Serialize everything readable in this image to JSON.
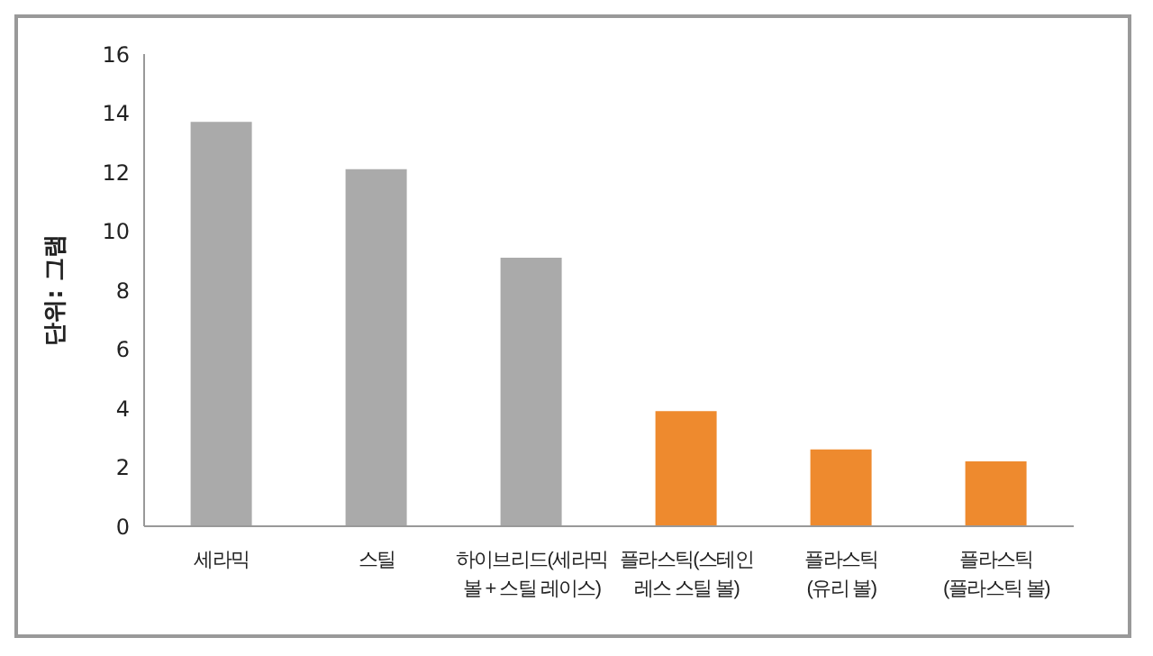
{
  "chart_data": {
    "type": "bar",
    "ylabel": "단위: 그램",
    "categories": [
      "세라믹",
      "스틸",
      "하이브리드(세라믹\n볼 + 스틸 레이스)",
      "플라스틱(스테인\n레스 스틸 볼)",
      "플라스틱\n(유리 볼)",
      "플라스틱\n(플라스틱 볼)"
    ],
    "values": [
      13.7,
      12.1,
      9.1,
      3.9,
      2.6,
      2.2
    ],
    "colors": [
      "#aaaaaa",
      "#aaaaaa",
      "#aaaaaa",
      "#ee8a2e",
      "#ee8a2e",
      "#ee8a2e"
    ],
    "ylim": [
      0,
      16
    ],
    "yticks": [
      0,
      2,
      4,
      6,
      8,
      10,
      12,
      14,
      16
    ],
    "grid": false,
    "legend": false
  }
}
